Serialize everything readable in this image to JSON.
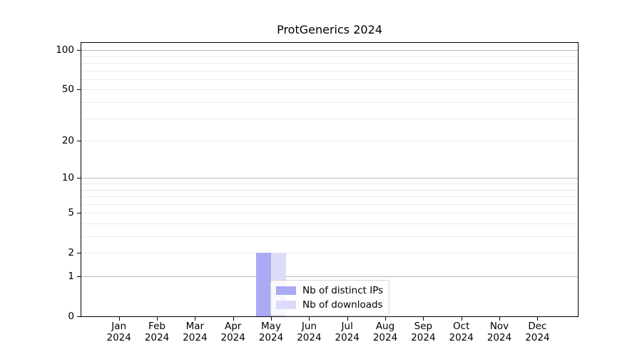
{
  "chart_data": {
    "type": "bar",
    "title": "ProtGenerics 2024",
    "year": "2024",
    "months": [
      "Jan",
      "Feb",
      "Mar",
      "Apr",
      "May",
      "Jun",
      "Jul",
      "Aug",
      "Sep",
      "Oct",
      "Nov",
      "Dec"
    ],
    "series": [
      {
        "name": "Nb of distinct IPs",
        "color": "#a9a9f4",
        "values": [
          0,
          0,
          0,
          0,
          2,
          0,
          0,
          0,
          0,
          0,
          0,
          0
        ]
      },
      {
        "name": "Nb of downloads",
        "color": "#dcdcfa",
        "values": [
          0,
          0,
          0,
          0,
          2,
          0,
          0,
          0,
          0,
          0,
          0,
          0
        ]
      }
    ],
    "xlabel": "",
    "ylabel": "",
    "y_scale": "log1p",
    "ylim": [
      0,
      113
    ],
    "y_ticks": [
      100,
      50,
      20,
      10,
      5,
      2,
      1,
      0
    ],
    "y_major_gridlines": [
      1,
      10,
      100
    ],
    "y_minor_gridlines": [
      2,
      3,
      4,
      5,
      6,
      7,
      8,
      9,
      20,
      30,
      40,
      50,
      60,
      70,
      80,
      90
    ],
    "grid": "horizontal-only",
    "legend_position": "inside lower center",
    "colors": {
      "axis": "#000000",
      "major_grid": "#b9b9b9",
      "minor_grid": "#ebebeb",
      "legend_border": "#d5d5d5",
      "background": "#ffffff"
    }
  }
}
